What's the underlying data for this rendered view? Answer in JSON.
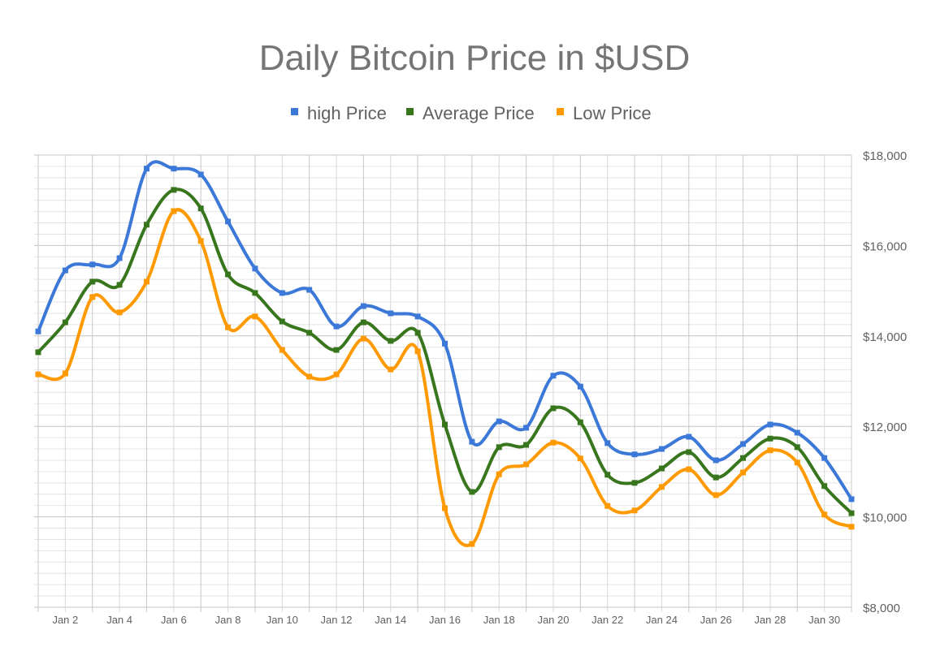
{
  "chart_data": {
    "type": "line",
    "title": "Daily Bitcoin Price in $USD",
    "legend_position": "top",
    "grid": true,
    "smooth": true,
    "x": [
      "Jan 1",
      "Jan 2",
      "Jan 3",
      "Jan 4",
      "Jan 5",
      "Jan 6",
      "Jan 7",
      "Jan 8",
      "Jan 9",
      "Jan 10",
      "Jan 11",
      "Jan 12",
      "Jan 13",
      "Jan 14",
      "Jan 15",
      "Jan 16",
      "Jan 17",
      "Jan 18",
      "Jan 19",
      "Jan 20",
      "Jan 21",
      "Jan 22",
      "Jan 23",
      "Jan 24",
      "Jan 25",
      "Jan 26",
      "Jan 27",
      "Jan 28",
      "Jan 29",
      "Jan 30",
      "Jan 31"
    ],
    "x_tick_labels": [
      "Jan 2",
      "Jan 4",
      "Jan 6",
      "Jan 8",
      "Jan 10",
      "Jan 12",
      "Jan 14",
      "Jan 16",
      "Jan 18",
      "Jan 20",
      "Jan 22",
      "Jan 24",
      "Jan 26",
      "Jan 28",
      "Jan 30"
    ],
    "y_tick_labels": [
      "$8,000",
      "$10,000",
      "$12,000",
      "$14,000",
      "$16,000",
      "$18,000"
    ],
    "ylim": [
      8000,
      18000
    ],
    "y_axis_side": "right",
    "series": [
      {
        "name": "high Price",
        "color": "#3c78d8",
        "values": [
          14100,
          15450,
          15580,
          15720,
          17700,
          17700,
          17570,
          16530,
          15490,
          14950,
          15020,
          14210,
          14660,
          14500,
          14430,
          13830,
          11660,
          12110,
          11970,
          13120,
          12880,
          11630,
          11380,
          11500,
          11770,
          11250,
          11610,
          12040,
          11860,
          11300,
          10390
        ]
      },
      {
        "name": "Average Price",
        "color": "#38761d",
        "values": [
          13640,
          14300,
          15200,
          15130,
          16460,
          17230,
          16820,
          15360,
          14950,
          14320,
          14070,
          13690,
          14300,
          13890,
          14070,
          12040,
          10550,
          11540,
          11590,
          12400,
          12090,
          10930,
          10750,
          11070,
          11430,
          10870,
          11300,
          11730,
          11540,
          10680,
          10080
        ]
      },
      {
        "name": "Low Price",
        "color": "#ff9900",
        "values": [
          13150,
          13170,
          14860,
          14520,
          15200,
          16760,
          16100,
          14190,
          14430,
          13690,
          13100,
          13150,
          13940,
          13260,
          13660,
          10190,
          9400,
          10940,
          11160,
          11640,
          11290,
          10240,
          10140,
          10660,
          11050,
          10480,
          10980,
          11470,
          11200,
          10050,
          9780
        ]
      }
    ]
  }
}
